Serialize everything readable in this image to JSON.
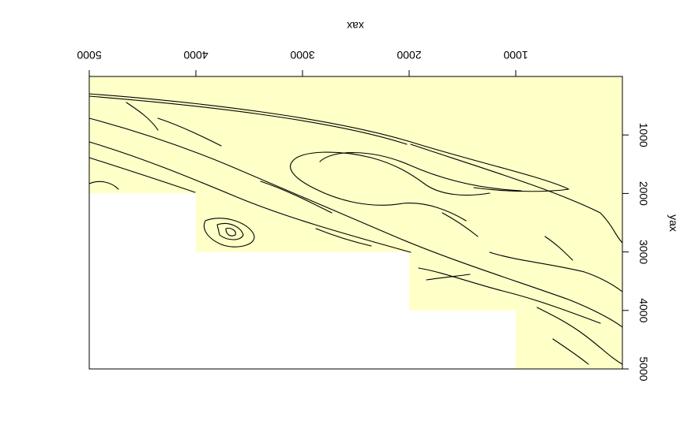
{
  "chart_data": {
    "type": "map",
    "xlabel": "xax",
    "ylabel": "yax",
    "x_reversed": true,
    "y_reversed": true,
    "xlim": [
      0,
      5000
    ],
    "ylim": [
      0,
      5000
    ],
    "x_ticks": [
      {
        "value": 1000,
        "label": "1000"
      },
      {
        "value": 2000,
        "label": "2000"
      },
      {
        "value": 3000,
        "label": "3000"
      },
      {
        "value": 4000,
        "label": "4000"
      },
      {
        "value": 5000,
        "label": "5000"
      }
    ],
    "y_ticks": [
      {
        "value": 1000,
        "label": "1000"
      },
      {
        "value": 2000,
        "label": "2000"
      },
      {
        "value": 3000,
        "label": "3000"
      },
      {
        "value": 4000,
        "label": "4000"
      },
      {
        "value": 5000,
        "label": "5000"
      }
    ],
    "fill_color": "#ffffc8",
    "line_color": "#000000",
    "coverage_tiles": [
      {
        "x_min": 0,
        "x_max": 5000,
        "y_min": 0,
        "y_max": 2000
      },
      {
        "x_min": 0,
        "x_max": 4000,
        "y_min": 2000,
        "y_max": 3000
      },
      {
        "x_min": 0,
        "x_max": 2000,
        "y_min": 3000,
        "y_max": 4000
      },
      {
        "x_min": 0,
        "x_max": 1000,
        "y_min": 4000,
        "y_max": 5000
      }
    ]
  }
}
